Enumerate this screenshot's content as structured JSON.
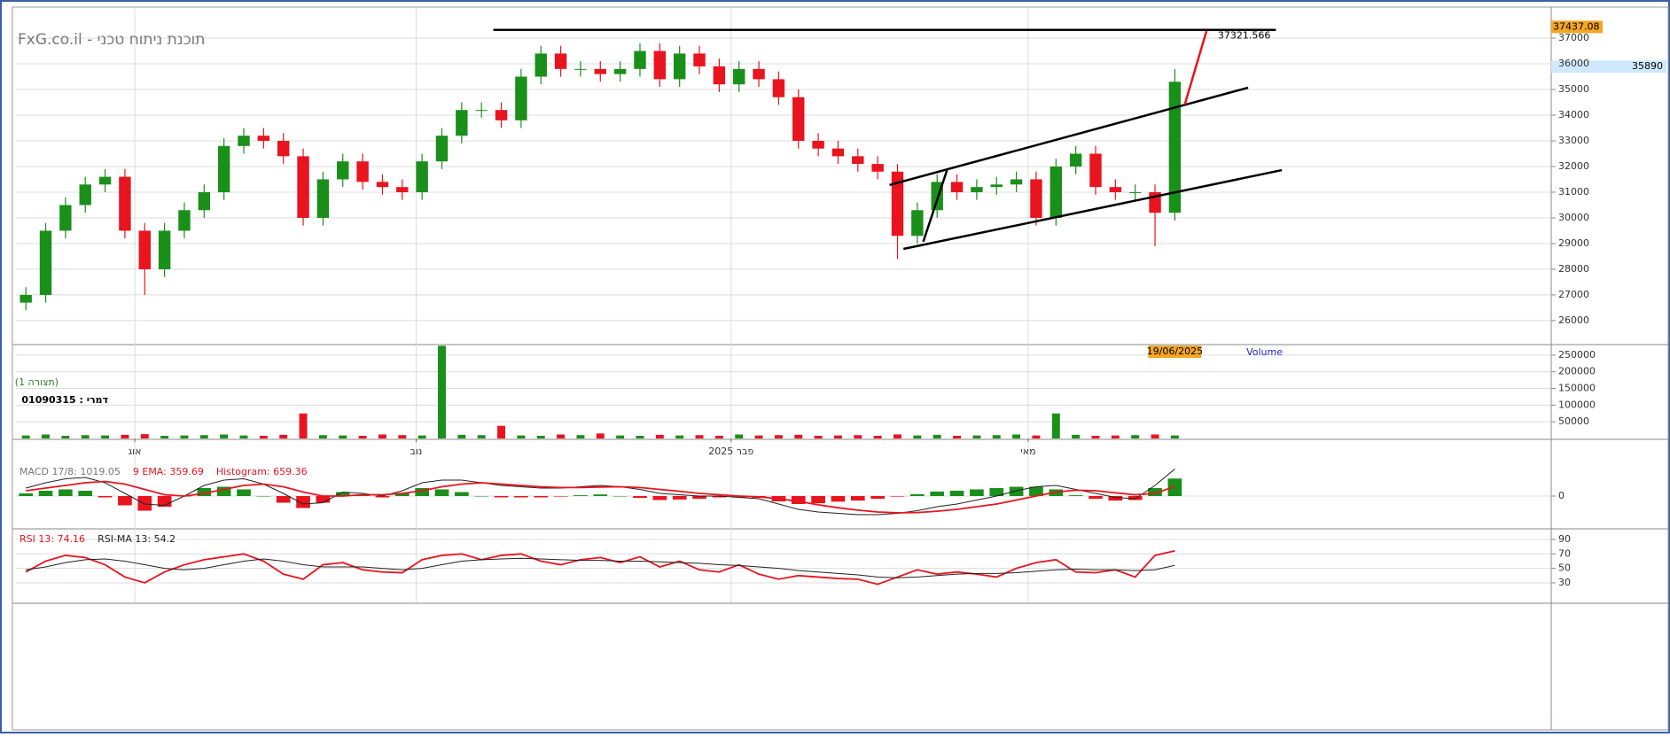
{
  "chart_data": [
    {
      "type": "candlestick",
      "title": "FxG.co.il - תוכנת ניתוח טכני",
      "annotations": [
        "(תצורה 1)",
        "דמרי : 01090315"
      ],
      "date_label": "19/06/2025",
      "up_color": "#1a8f1a",
      "down_color": "#e8141e",
      "xlim": [
        -0.5,
        77
      ],
      "xticks": [
        {
          "value": 5.5,
          "label": "אוג"
        },
        {
          "value": 19.7,
          "label": "נוב"
        },
        {
          "value": 35.6,
          "label": "פבר 2025"
        },
        {
          "value": 50.6,
          "label": "מאי"
        }
      ],
      "ylim": [
        25100,
        38140
      ],
      "yticks": [
        26000,
        27000,
        28000,
        29000,
        30000,
        31000,
        32000,
        33000,
        34000,
        35000,
        36000,
        37000
      ],
      "grid": true,
      "open": [
        26700,
        27000,
        29500,
        30500,
        31300,
        31600,
        29500,
        28000,
        29500,
        30300,
        31000,
        32800,
        33200,
        33000,
        32400,
        30000,
        31500,
        32200,
        31400,
        31200,
        31000,
        32200,
        33200,
        34200,
        34200,
        33800,
        35500,
        36400,
        35800,
        35800,
        35600,
        35800,
        36500,
        35400,
        36400,
        35900,
        35200,
        35800,
        35400,
        34700,
        33000,
        32700,
        32400,
        32100,
        31800,
        29300,
        30300,
        31400,
        31000,
        31200,
        31300,
        31500,
        30000,
        32000,
        32500,
        31200,
        31000,
        31000,
        30200
      ],
      "high": [
        27300,
        29800,
        30800,
        31600,
        31900,
        31900,
        29800,
        29800,
        30600,
        31300,
        33100,
        33500,
        33500,
        33300,
        32700,
        31800,
        32500,
        32500,
        31700,
        31500,
        32500,
        33500,
        34500,
        34500,
        34500,
        35800,
        36700,
        36700,
        36100,
        36100,
        36100,
        36800,
        36800,
        36700,
        36700,
        36200,
        36100,
        36100,
        35700,
        35000,
        33300,
        33000,
        32700,
        32400,
        32100,
        30600,
        31700,
        31700,
        31500,
        31600,
        31800,
        31800,
        32300,
        32800,
        32800,
        31500,
        31300,
        31300,
        35800
      ],
      "low": [
        26400,
        26700,
        29200,
        30200,
        31000,
        29200,
        27000,
        27700,
        29200,
        30000,
        30700,
        32500,
        32700,
        32100,
        29700,
        29700,
        31200,
        31100,
        30900,
        30700,
        30700,
        31900,
        32900,
        33900,
        33500,
        33500,
        35200,
        35500,
        35500,
        35300,
        35300,
        35500,
        35100,
        35100,
        35600,
        34900,
        34900,
        35100,
        34400,
        32700,
        32400,
        32100,
        31800,
        31500,
        28400,
        29000,
        30000,
        30700,
        30700,
        30900,
        31000,
        29700,
        29700,
        31700,
        30900,
        30700,
        30700,
        28900,
        29900
      ],
      "close": [
        27000,
        29500,
        30500,
        31300,
        31600,
        29500,
        28000,
        29500,
        30300,
        31000,
        32800,
        33200,
        33000,
        32400,
        30000,
        31500,
        32200,
        31400,
        31200,
        31000,
        32200,
        33200,
        34200,
        34200,
        33800,
        35500,
        36400,
        35800,
        35800,
        35600,
        35800,
        36500,
        35400,
        36400,
        35900,
        35200,
        35800,
        35400,
        34700,
        33000,
        32700,
        32400,
        32100,
        31800,
        29300,
        30300,
        31400,
        31000,
        31200,
        31300,
        31500,
        30000,
        32000,
        32500,
        31200,
        31000,
        31000,
        30200,
        35300
      ],
      "trendlines": [
        {
          "x": [
            23.6,
            63.1
          ],
          "y": [
            37321.566,
            37321.566
          ],
          "color": "#000000"
        },
        {
          "x": [
            43.6,
            61.7
          ],
          "y": [
            31280,
            35070
          ],
          "color": "#000000"
        },
        {
          "x": [
            44.3,
            63.4
          ],
          "y": [
            28790,
            31860
          ],
          "color": "#000000"
        },
        {
          "x": [
            45.3,
            46.5
          ],
          "y": [
            29070,
            31860
          ],
          "color": "#000000"
        },
        {
          "x": [
            58.5,
            59.6
          ],
          "y": [
            34410,
            37280
          ],
          "color": "#e8141e"
        }
      ],
      "price_labels": [
        {
          "value": 37437.08,
          "color": "#f5a623"
        },
        {
          "value": 35890,
          "color": "#cfe8fb"
        }
      ]
    },
    {
      "type": "bar",
      "title": "Volume",
      "up_color": "#1a8f1a",
      "down_color": "#e8141e",
      "ylim": [
        0,
        279000
      ],
      "yticks": [
        50000,
        100000,
        150000,
        200000,
        250000
      ],
      "grid": true,
      "values": [
        9000,
        12000,
        8000,
        10000,
        9000,
        11000,
        13000,
        8000,
        9000,
        10000,
        12000,
        9000,
        8000,
        11000,
        75000,
        10000,
        9000,
        8000,
        12000,
        10000,
        9000,
        278000,
        11000,
        10000,
        38000,
        9000,
        8000,
        12000,
        10000,
        15000,
        9000,
        8000,
        11000,
        9000,
        10000,
        8000,
        12000,
        9000,
        10000,
        11000,
        8000,
        9000,
        10000,
        8000,
        12000,
        9000,
        11000,
        8000,
        9000,
        10000,
        12000,
        9000,
        75000,
        11000,
        8000,
        9000,
        10000,
        12000,
        9000
      ]
    },
    {
      "type": "macd",
      "ylim": [
        -1200,
        1200
      ],
      "yticks": [
        0
      ],
      "grid": true,
      "series": [
        {
          "name": "MACD 17/8: 1019.05",
          "color": "#222222",
          "legend_color": "#777777",
          "values": [
            300,
            500,
            650,
            700,
            500,
            100,
            -300,
            -350,
            0,
            400,
            600,
            650,
            450,
            100,
            -300,
            -250,
            150,
            100,
            0,
            200,
            500,
            600,
            600,
            500,
            400,
            350,
            300,
            300,
            350,
            400,
            350,
            250,
            100,
            50,
            0,
            0,
            -50,
            -100,
            -300,
            -500,
            -600,
            -650,
            -700,
            -700,
            -650,
            -550,
            -400,
            -300,
            -150,
            0,
            200,
            350,
            400,
            250,
            100,
            -50,
            -100,
            400,
            1019.05
          ]
        },
        {
          "name": "9 EMA: 359.69",
          "color": "#e8141e",
          "legend_color": "#e8141e",
          "values": [
            200,
            300,
            400,
            500,
            550,
            450,
            250,
            50,
            0,
            100,
            250,
            400,
            450,
            350,
            150,
            0,
            0,
            50,
            50,
            100,
            200,
            350,
            450,
            500,
            450,
            400,
            350,
            320,
            320,
            340,
            350,
            320,
            250,
            180,
            100,
            50,
            0,
            -30,
            -100,
            -200,
            -330,
            -440,
            -530,
            -600,
            -630,
            -620,
            -570,
            -500,
            -400,
            -300,
            -150,
            0,
            150,
            220,
            200,
            120,
            50,
            100,
            359.69
          ]
        },
        {
          "name": "Histogram: 659.36",
          "kind": "histogram",
          "color": "#1a8f1a",
          "down_color": "#e8141e",
          "legend_color": "#e8141e",
          "values": [
            100,
            200,
            250,
            200,
            -50,
            -350,
            -550,
            -400,
            0,
            300,
            350,
            250,
            0,
            -250,
            -450,
            -250,
            150,
            50,
            -50,
            100,
            300,
            250,
            150,
            0,
            -50,
            -50,
            -50,
            -20,
            30,
            60,
            0,
            -70,
            -150,
            -130,
            -100,
            -50,
            -50,
            -70,
            -200,
            -300,
            -270,
            -210,
            -170,
            -100,
            -20,
            70,
            170,
            200,
            250,
            300,
            350,
            350,
            250,
            30,
            -100,
            -170,
            -150,
            300,
            659.36
          ]
        }
      ]
    },
    {
      "type": "line",
      "ylim": [
        3,
        101
      ],
      "yticks": [
        30,
        50,
        70,
        90
      ],
      "grid": true,
      "series": [
        {
          "name": "RSI 13: 74.16",
          "color": "#e8141e",
          "values": [
            45,
            60,
            68,
            65,
            55,
            38,
            30,
            45,
            55,
            62,
            66,
            70,
            60,
            42,
            35,
            55,
            58,
            48,
            45,
            44,
            62,
            68,
            70,
            62,
            68,
            70,
            60,
            55,
            62,
            65,
            58,
            66,
            52,
            60,
            48,
            45,
            55,
            42,
            35,
            40,
            38,
            36,
            35,
            28,
            38,
            48,
            42,
            45,
            42,
            38,
            50,
            58,
            62,
            45,
            44,
            48,
            38,
            68,
            74.16
          ]
        },
        {
          "name": "RSI-MA 13: 54.2",
          "color": "#222222",
          "values": [
            48,
            52,
            58,
            62,
            63,
            60,
            55,
            50,
            48,
            50,
            55,
            60,
            63,
            60,
            55,
            52,
            52,
            52,
            50,
            48,
            50,
            55,
            60,
            62,
            63,
            64,
            63,
            62,
            61,
            61,
            60,
            60,
            59,
            58,
            57,
            55,
            54,
            52,
            50,
            47,
            45,
            43,
            41,
            38,
            37,
            38,
            40,
            42,
            43,
            43,
            44,
            46,
            48,
            49,
            48,
            48,
            47,
            48,
            54.2
          ]
        }
      ]
    }
  ]
}
